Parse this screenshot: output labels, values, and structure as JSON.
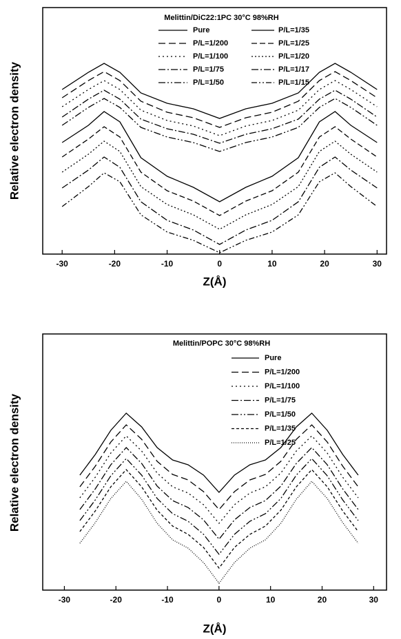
{
  "chart_data": [
    {
      "type": "line",
      "title": "Melittin/DiC22:1PC 30°C 98%RH",
      "x_label": "Z(Å)",
      "y_label": "Relative electron density",
      "xlim": [
        -33.7,
        31.8
      ],
      "xticks": [
        -30,
        -20,
        -10,
        0,
        10,
        20,
        30
      ],
      "ylim": [
        0,
        358
      ],
      "legend_columns": 2,
      "color": "#000000",
      "x": [
        -30,
        -25,
        -22,
        -19,
        -15,
        -10,
        -5,
        0,
        5,
        10,
        15,
        19,
        22,
        25,
        30
      ],
      "series": [
        {
          "name": "Pure",
          "values": [
            239,
            264,
            277,
            264,
            234,
            219,
            211,
            197,
            211,
            219,
            234,
            264,
            277,
            264,
            239
          ]
        },
        {
          "name": "P/L=1/200",
          "dash": "10,5",
          "values": [
            227,
            252,
            265,
            252,
            222,
            206,
            198,
            184,
            198,
            206,
            222,
            252,
            265,
            252,
            227
          ]
        },
        {
          "name": "P/L=1/100",
          "dash": "2,4",
          "values": [
            214,
            239,
            252,
            239,
            209,
            194,
            186,
            172,
            186,
            194,
            209,
            239,
            252,
            239,
            214
          ]
        },
        {
          "name": "P/L=1/75",
          "dash": "10,3,2,3",
          "values": [
            199,
            225,
            238,
            225,
            196,
            182,
            174,
            161,
            174,
            182,
            196,
            225,
            238,
            225,
            199
          ]
        },
        {
          "name": "P/L=1/50",
          "dash": "10,3,2,3,2,3",
          "values": [
            187,
            213,
            226,
            213,
            184,
            170,
            162,
            149,
            162,
            170,
            184,
            213,
            226,
            213,
            187
          ]
        },
        {
          "name": "P/L=1/35",
          "values": [
            162,
            187,
            207,
            192,
            140,
            113,
            97,
            76,
            97,
            113,
            140,
            192,
            207,
            187,
            162
          ]
        },
        {
          "name": "P/L=1/25",
          "dash": "8,4",
          "values": [
            141,
            167,
            185,
            170,
            119,
            92,
            77,
            56,
            77,
            92,
            119,
            170,
            185,
            167,
            141
          ]
        },
        {
          "name": "P/L=1/20",
          "dash": "2,3",
          "values": [
            119,
            145,
            164,
            149,
            98,
            72,
            57,
            36,
            57,
            72,
            98,
            149,
            164,
            145,
            119
          ]
        },
        {
          "name": "P/L=1/17",
          "dash": "10,3,2,3",
          "values": [
            96,
            122,
            141,
            126,
            76,
            49,
            35,
            14,
            35,
            49,
            76,
            126,
            141,
            122,
            96
          ]
        },
        {
          "name": "P/L=1/15",
          "dash": "8,3,2,3,2,3",
          "values": [
            69,
            98,
            118,
            105,
            57,
            32,
            20,
            2,
            20,
            32,
            57,
            105,
            118,
            98,
            69
          ]
        }
      ]
    },
    {
      "type": "line",
      "title": "Melittin/POPC 30°C 98%RH",
      "x_label": "Z(Å)",
      "y_label": "Relative electron density",
      "xlim": [
        -34.2,
        32.5
      ],
      "xticks": [
        -30,
        -20,
        -10,
        0,
        10,
        20,
        30
      ],
      "ylim": [
        0,
        372
      ],
      "legend_columns": 1,
      "color": "#000000",
      "x": [
        -27,
        -24,
        -21,
        -18,
        -15,
        -12,
        -9,
        -6,
        -3,
        0,
        3,
        6,
        9,
        12,
        15,
        18,
        21,
        24,
        27
      ],
      "series": [
        {
          "name": "Pure",
          "values": [
            167,
            197,
            232,
            257,
            237,
            207,
            189,
            182,
            167,
            142,
            167,
            182,
            189,
            207,
            237,
            257,
            232,
            197,
            167
          ]
        },
        {
          "name": "P/L=1/200",
          "dash": "10,5",
          "values": [
            150,
            180,
            215,
            240,
            219,
            187,
            168,
            160,
            143,
            117,
            143,
            160,
            168,
            187,
            219,
            240,
            215,
            180,
            150
          ]
        },
        {
          "name": "P/L=1/100",
          "dash": "2,4",
          "values": [
            134,
            164,
            199,
            224,
            202,
            170,
            150,
            141,
            124,
            97,
            124,
            141,
            150,
            170,
            202,
            224,
            199,
            164,
            134
          ]
        },
        {
          "name": "P/L=1/75",
          "dash": "10,3,2,3",
          "values": [
            117,
            147,
            182,
            207,
            184,
            151,
            130,
            120,
            102,
            74,
            102,
            120,
            130,
            151,
            184,
            207,
            182,
            147,
            117
          ]
        },
        {
          "name": "P/L=1/50",
          "dash": "10,3,2,3,2,3",
          "values": [
            101,
            131,
            166,
            191,
            167,
            133,
            111,
            100,
            81,
            52,
            81,
            100,
            111,
            133,
            167,
            191,
            166,
            131,
            101
          ]
        },
        {
          "name": "P/L=1/35",
          "dash": "4,3",
          "values": [
            85,
            115,
            150,
            175,
            150,
            116,
            93,
            81,
            62,
            32,
            62,
            81,
            93,
            116,
            150,
            175,
            150,
            115,
            85
          ]
        },
        {
          "name": "P/L=1/25",
          "dash": "1,2",
          "values": [
            68,
            98,
            133,
            158,
            132,
            97,
            73,
            61,
            40,
            10,
            40,
            61,
            73,
            97,
            132,
            158,
            133,
            98,
            68
          ]
        }
      ]
    }
  ]
}
